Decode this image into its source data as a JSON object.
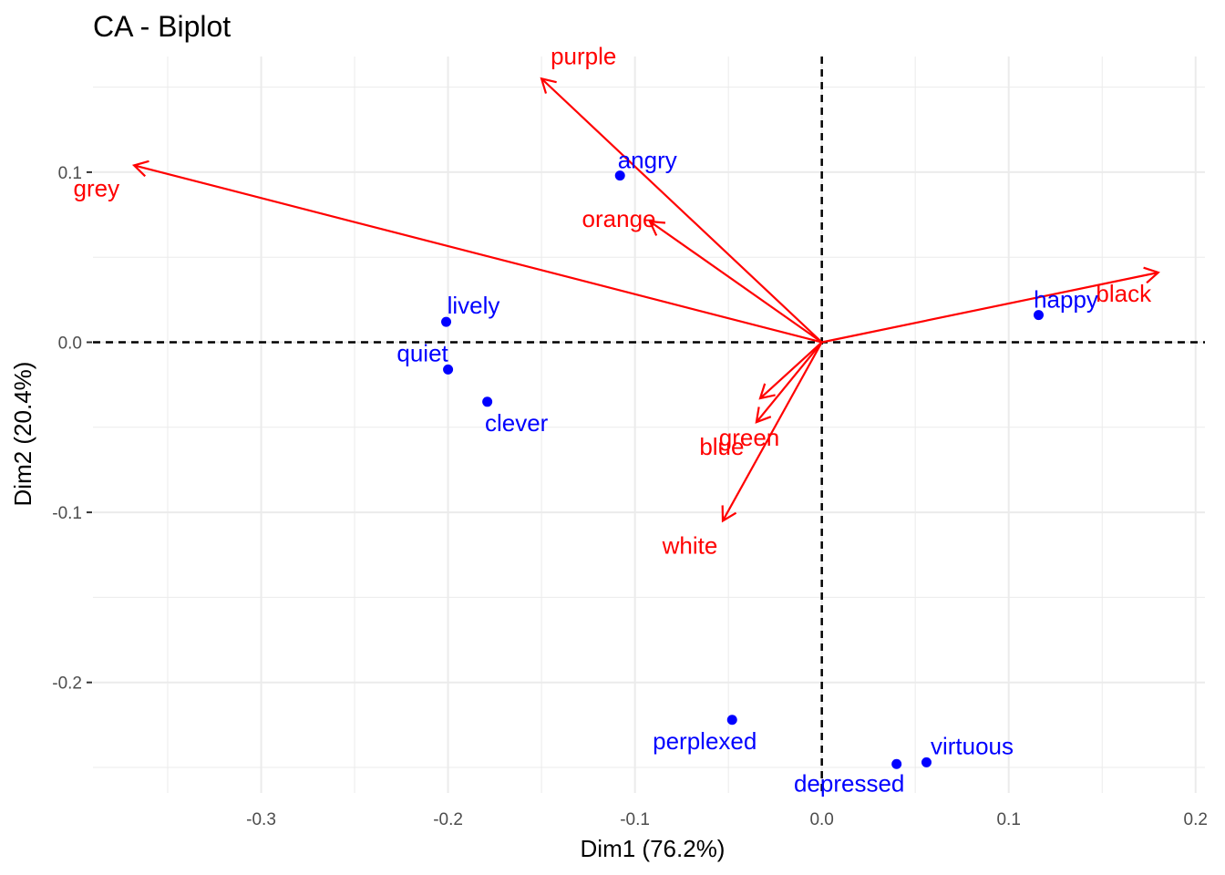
{
  "chart_data": {
    "type": "scatter",
    "title": "CA - Biplot",
    "xlabel": "Dim1 (76.2%)",
    "ylabel": "Dim2 (20.4%)",
    "xlim": [
      -0.39,
      0.205
    ],
    "ylim": [
      -0.265,
      0.168
    ],
    "x_ticks": [
      -0.3,
      -0.2,
      -0.1,
      0.0,
      0.1,
      0.2
    ],
    "x_tick_labels": [
      "-0.3",
      "-0.2",
      "-0.1",
      "0.0",
      "0.1",
      "0.2"
    ],
    "y_ticks": [
      -0.2,
      -0.1,
      0.0,
      0.1
    ],
    "y_tick_labels": [
      "-0.2",
      "-0.1",
      "0.0",
      "0.1"
    ],
    "grid": true,
    "reference_lines": {
      "x": 0,
      "y": 0,
      "style": "dashed"
    },
    "points": {
      "color": "#0000ff",
      "items": [
        {
          "label": "angry",
          "x": -0.108,
          "y": 0.098
        },
        {
          "label": "happy",
          "x": 0.116,
          "y": 0.016
        },
        {
          "label": "lively",
          "x": -0.201,
          "y": 0.012
        },
        {
          "label": "quiet",
          "x": -0.2,
          "y": -0.016
        },
        {
          "label": "clever",
          "x": -0.179,
          "y": -0.035
        },
        {
          "label": "perplexed",
          "x": -0.048,
          "y": -0.222
        },
        {
          "label": "depressed",
          "x": 0.04,
          "y": -0.248
        },
        {
          "label": "virtuous",
          "x": 0.056,
          "y": -0.247
        }
      ]
    },
    "arrows": {
      "color": "#ff0000",
      "items": [
        {
          "label": "purple",
          "x": -0.15,
          "y": 0.155
        },
        {
          "label": "grey",
          "x": -0.368,
          "y": 0.104
        },
        {
          "label": "orange",
          "x": -0.092,
          "y": 0.071
        },
        {
          "label": "black",
          "x": 0.18,
          "y": 0.041
        },
        {
          "label": "green",
          "x": -0.033,
          "y": -0.033
        },
        {
          "label": "blue",
          "x": -0.035,
          "y": -0.047
        },
        {
          "label": "white",
          "x": -0.053,
          "y": -0.105
        }
      ]
    }
  }
}
